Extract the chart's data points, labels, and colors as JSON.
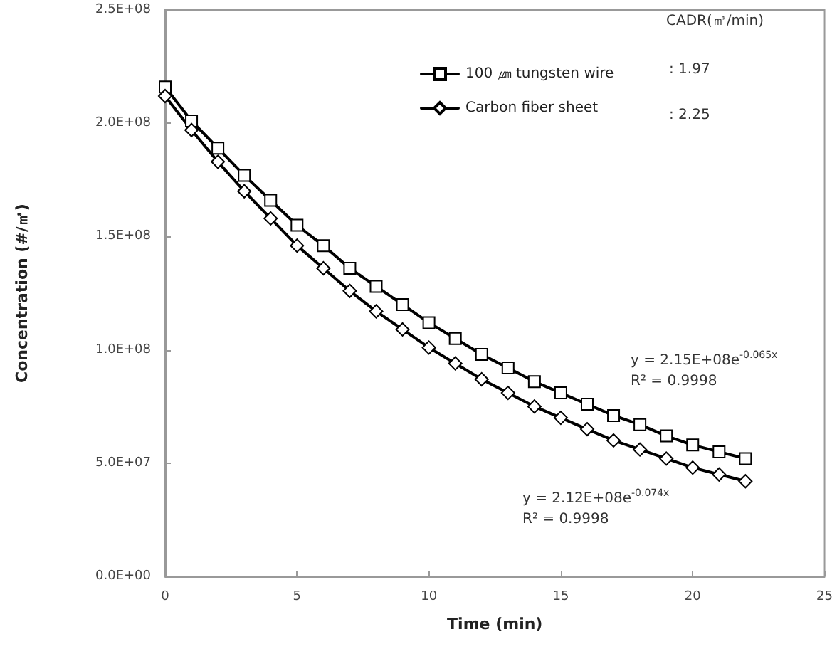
{
  "chart_data": {
    "type": "line",
    "xlabel": "Time (min)",
    "ylabel": "Concentration (#/㎥)",
    "x": [
      0,
      1,
      2,
      3,
      4,
      5,
      6,
      7,
      8,
      9,
      10,
      11,
      12,
      13,
      14,
      15,
      16,
      17,
      18,
      19,
      20,
      21,
      22
    ],
    "series": [
      {
        "name": "100 ㎛ tungsten wire",
        "color": "#000000",
        "marker": "square",
        "values": [
          216000000,
          201000000,
          189000000,
          177000000,
          166000000,
          155000000,
          146000000,
          136000000,
          128000000,
          120000000,
          112000000,
          105000000,
          98000000,
          92000000,
          86000000,
          81000000,
          76000000,
          71000000,
          67000000,
          62000000,
          58000000,
          55000000,
          52000000
        ]
      },
      {
        "name": "Carbon fiber sheet",
        "color": "#000000",
        "marker": "diamond",
        "values": [
          212000000,
          197000000,
          183000000,
          170000000,
          158000000,
          146000000,
          136000000,
          126000000,
          117000000,
          109000000,
          101000000,
          94000000,
          87000000,
          81000000,
          75000000,
          70000000,
          65000000,
          60000000,
          56000000,
          52000000,
          48000000,
          45000000,
          42000000
        ]
      }
    ],
    "xlim": [
      0,
      25
    ],
    "xticks": [
      0,
      5,
      10,
      15,
      20,
      25
    ],
    "ylim": [
      0,
      250000000
    ],
    "yticks": [
      {
        "value": 0,
        "label": "0.0E+00"
      },
      {
        "value": 50000000,
        "label": "5.0E+07"
      },
      {
        "value": 100000000,
        "label": "1.0E+08"
      },
      {
        "value": 150000000,
        "label": "1.5E+08"
      },
      {
        "value": 200000000,
        "label": "2.0E+08"
      },
      {
        "value": 250000000,
        "label": "2.5E+08"
      }
    ],
    "grid": false,
    "legend": "top right",
    "annotations": [
      "CADR(㎥/min)",
      ": 1.97",
      ": 2.25",
      "y = 2.15E+08e$^{-0.065x}$",
      "R² = 0.9998",
      "y = 2.12E+08e$^{-0.074x}$",
      "R² = 0.9998"
    ]
  }
}
